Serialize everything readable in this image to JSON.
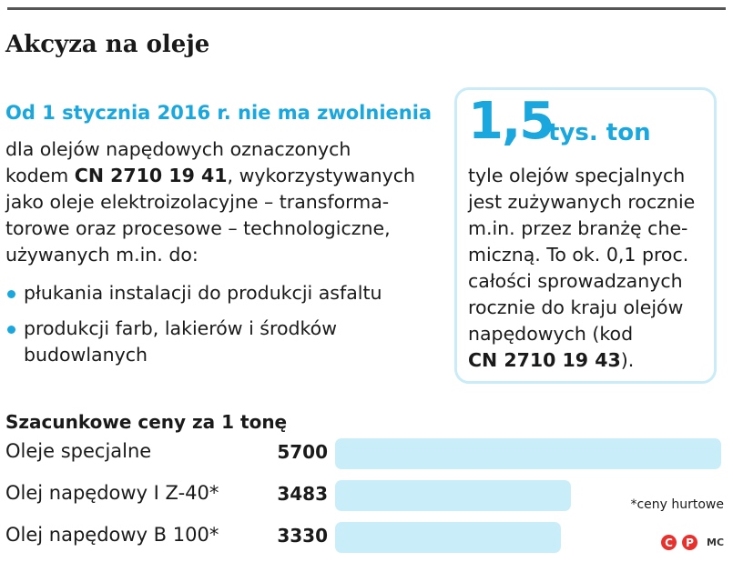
{
  "title": "Akcyza na oleje",
  "exemption": {
    "heading": "Od 1 stycznia 2016 r. nie ma zwolnienia",
    "line1": "dla olejów napędowych oznaczonych",
    "line2_pre": "kodem ",
    "line2_code": "CN 2710 19 41",
    "line2_post": ", wykorzystywanych",
    "line3": "jako oleje elektroizolacyjne – transforma-",
    "line4": "torowe oraz procesowe – technologiczne,",
    "line5": "używanych m.in. do:",
    "bullets": [
      "płukania instalacji do produkcji asfaltu",
      "produkcji farb, lakierów i środków",
      "budowlanych"
    ]
  },
  "stat": {
    "number": "1,5",
    "unit": "tys. ton",
    "lines": [
      "tyle olejów specjalnych",
      "jest zużywanych rocznie",
      "m.in. przez branżę che-",
      "miczną. To ok. 0,1 proc.",
      "całości sprowadzanych",
      "rocznie do kraju olejów",
      "napędowych (kod"
    ],
    "code": "CN 2710 19 43",
    "code_suffix": ")."
  },
  "chart_data": {
    "type": "bar",
    "orientation": "horizontal",
    "title": "Szacunkowe ceny za 1 tonę",
    "categories": [
      "Oleje specjalne",
      "Olej napędowy I Z-40*",
      "Olej napędowy B 100*"
    ],
    "values": [
      5700,
      3483,
      3330
    ],
    "value_labels": [
      "5700",
      "3483",
      "3330"
    ],
    "bar_color": "#c9eef9",
    "footnote": "*ceny hurtowe"
  },
  "logo": {
    "mark1": "C",
    "mark2": "P",
    "text": "MC",
    "color": "#e8312d"
  },
  "colors": {
    "accent": "#1aa7dd",
    "bar": "#c9eef9",
    "box_border": "#c9ecf8"
  }
}
